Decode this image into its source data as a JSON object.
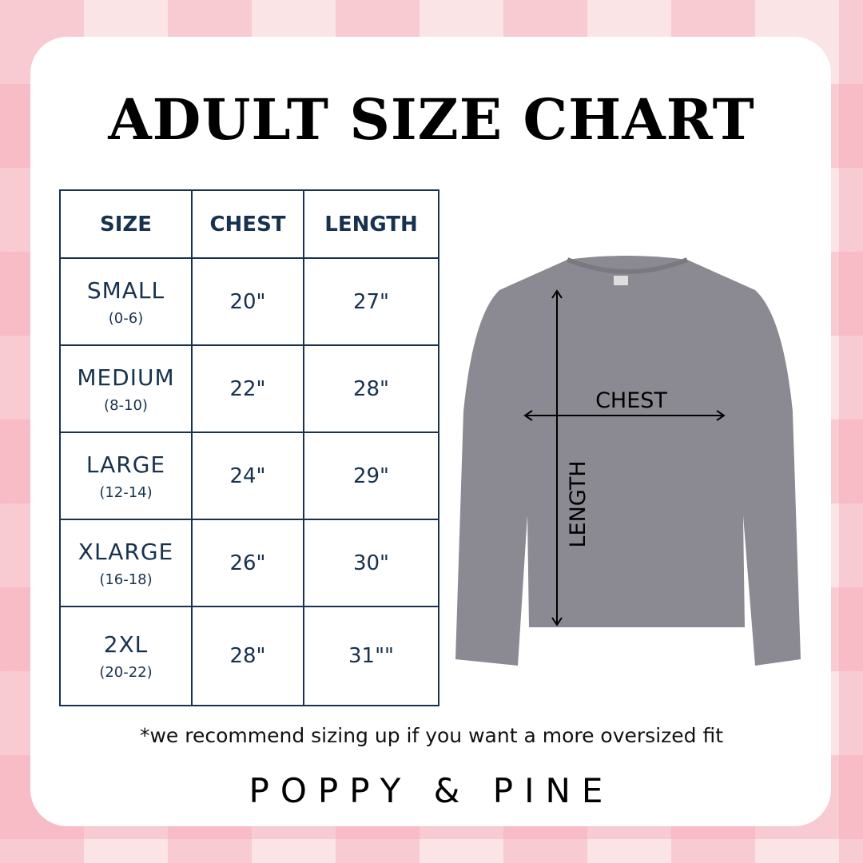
{
  "title": "ADULT SIZE CHART",
  "table": {
    "headers": [
      "SIZE",
      "CHEST",
      "LENGTH"
    ],
    "rows": [
      {
        "size": "SMALL",
        "range": "(0-6)",
        "chest": "20\"",
        "length": "27\""
      },
      {
        "size": "MEDIUM",
        "range": "(8-10)",
        "chest": "22\"",
        "length": "28\""
      },
      {
        "size": "LARGE",
        "range": "(12-14)",
        "chest": "24\"",
        "length": "29\""
      },
      {
        "size": "XLARGE",
        "range": "(16-18)",
        "chest": "26\"",
        "length": "30\""
      },
      {
        "size": "2XL",
        "range": "(20-22)",
        "chest": "28\"",
        "length": "31\"\""
      }
    ]
  },
  "diagram": {
    "chest_label": "CHEST",
    "length_label": "LENGTH",
    "shirt_color": "#8b8a93"
  },
  "note": "*we recommend sizing up if you want a more oversized fit",
  "brand": "POPPY & PINE",
  "colors": {
    "table": "#17324f",
    "background": "#fbe4e6"
  }
}
